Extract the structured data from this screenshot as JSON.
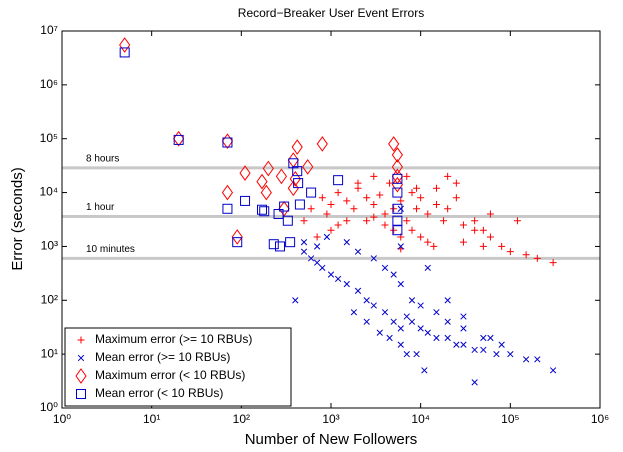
{
  "chart_data": {
    "type": "scatter",
    "title": "Record−Breaker User Event Errors",
    "xlabel": "Number of New Followers",
    "ylabel": "Error (seconds)",
    "xscale": "log",
    "yscale": "log",
    "xlim": [
      1,
      1000000
    ],
    "ylim": [
      1,
      10000000
    ],
    "xticks": [
      {
        "value": 1,
        "label": "10⁰"
      },
      {
        "value": 10,
        "label": "10¹"
      },
      {
        "value": 100,
        "label": "10²"
      },
      {
        "value": 1000,
        "label": "10³"
      },
      {
        "value": 10000,
        "label": "10⁴"
      },
      {
        "value": 100000,
        "label": "10⁵"
      },
      {
        "value": 1000000,
        "label": "10⁶"
      }
    ],
    "yticks": [
      {
        "value": 1,
        "label": "10⁰"
      },
      {
        "value": 10,
        "label": "10¹"
      },
      {
        "value": 100,
        "label": "10²"
      },
      {
        "value": 1000,
        "label": "10³"
      },
      {
        "value": 10000,
        "label": "10⁴"
      },
      {
        "value": 100000,
        "label": "10⁵"
      },
      {
        "value": 1000000,
        "label": "10⁶"
      },
      {
        "value": 10000000,
        "label": "10⁷"
      }
    ],
    "reference_lines": [
      {
        "value": 28800,
        "label": "8 hours"
      },
      {
        "value": 3600,
        "label": "1 hour"
      },
      {
        "value": 600,
        "label": "10 minutes"
      }
    ],
    "legend": "lower left",
    "series": [
      {
        "name": "Maximum error (>= 10 RBUs)",
        "color": "#ff0000",
        "marker": "plus",
        "x": [
          500,
          600,
          800,
          900,
          1000,
          1200,
          1500,
          1800,
          2000,
          2500,
          3000,
          3500,
          4000,
          4500,
          5000,
          6000,
          7000,
          8000,
          9000,
          10000,
          12000,
          15000,
          18000,
          20000,
          25000,
          30000,
          40000,
          50000,
          60000,
          80000,
          100000,
          150000,
          200000,
          300000,
          1000,
          1500,
          2000,
          3000,
          4000,
          6000,
          8000,
          10000,
          15000,
          20000,
          30000,
          50000,
          700,
          1200,
          2500,
          5000,
          7000,
          12000,
          25000,
          40000,
          3000,
          9000,
          14000,
          60000,
          120000,
          6000
        ],
        "values": [
          3000,
          5000,
          8000,
          4000,
          6000,
          10000,
          7000,
          5000,
          12000,
          8000,
          6000,
          9000,
          4000,
          15000,
          5000,
          7000,
          3000,
          10000,
          5000,
          8000,
          4000,
          6000,
          3000,
          5000,
          8000,
          2500,
          3000,
          2000,
          1500,
          1000,
          800,
          700,
          600,
          500,
          2000,
          3000,
          15000,
          20000,
          2500,
          1500,
          2000,
          1500,
          12000,
          20000,
          1200,
          1000,
          1500,
          2500,
          3000,
          2000,
          20000,
          1200,
          15000,
          2000,
          3500,
          12000,
          1000,
          4000,
          3000,
          900
        ]
      },
      {
        "name": "Mean error (>= 10 RBUs)",
        "color": "#0000cc",
        "marker": "cross",
        "x": [
          500,
          600,
          700,
          800,
          1000,
          1200,
          1500,
          2000,
          2500,
          3000,
          4000,
          5000,
          6000,
          6000,
          6000,
          6000,
          7000,
          8000,
          10000,
          12000,
          15000,
          20000,
          25000,
          30000,
          40000,
          50000,
          70000,
          100000,
          150000,
          300000,
          400,
          900,
          1500,
          2000,
          3000,
          4000,
          5000,
          8000,
          10000,
          15000,
          20000,
          30000,
          50000,
          80000,
          200000,
          2500,
          3500,
          6000,
          9000,
          12000,
          700,
          1800,
          4500,
          7000,
          20000,
          60000,
          40000,
          30000,
          500,
          11000
        ],
        "values": [
          800,
          600,
          500,
          400,
          300,
          250,
          200,
          150,
          100,
          80,
          60,
          40,
          5000,
          1000,
          200,
          30,
          50,
          40,
          30,
          25,
          20,
          20,
          15,
          15,
          12,
          12,
          10,
          10,
          8,
          5,
          100,
          1500,
          1200,
          800,
          600,
          400,
          300,
          100,
          80,
          60,
          40,
          30,
          20,
          15,
          8,
          40,
          25,
          15,
          10,
          400,
          1000,
          60,
          20,
          10,
          100,
          20,
          3,
          50,
          1200,
          5
        ]
      },
      {
        "name": "Maximum error (< 10 RBUs)",
        "color": "#ff0000",
        "marker": "diamond",
        "x": [
          5,
          20,
          70,
          90,
          70,
          110,
          170,
          200,
          190,
          280,
          380,
          420,
          380,
          300,
          550,
          800,
          400,
          5000,
          5500,
          5500,
          5500,
          5500
        ],
        "values": [
          5500000,
          100000,
          90000,
          1500,
          10000,
          23000,
          16000,
          28000,
          10000,
          20000,
          40000,
          70000,
          12000,
          5000,
          30000,
          80000,
          18000,
          80000,
          50000,
          30000,
          20000,
          14000
        ]
      },
      {
        "name": "Mean error (< 10 RBUs)",
        "color": "#0000cc",
        "marker": "square",
        "x": [
          5,
          20,
          70,
          70,
          110,
          180,
          170,
          230,
          260,
          270,
          330,
          300,
          380,
          420,
          430,
          450,
          350,
          600,
          1200,
          90,
          5500,
          5500,
          5500,
          5500,
          5500
        ],
        "values": [
          4000000,
          95000,
          85000,
          5000,
          7000,
          4500,
          4800,
          1100,
          4000,
          1000,
          3000,
          5500,
          35000,
          25000,
          15000,
          6000,
          1200,
          10000,
          17000,
          1200,
          18000,
          10000,
          5000,
          3000,
          2000
        ]
      }
    ]
  }
}
